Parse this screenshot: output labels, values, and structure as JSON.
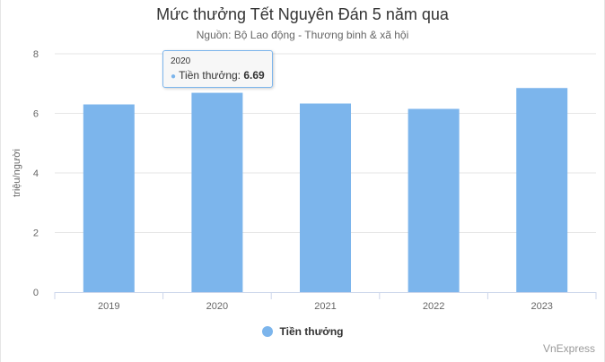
{
  "chart_data": {
    "type": "bar",
    "title": "Mức thưởng Tết Nguyên Đán 5 năm qua",
    "subtitle": "Nguồn: Bộ Lao động - Thương binh & xã hội",
    "ylabel": "triệu/người",
    "xlabel": "",
    "categories": [
      "2019",
      "2020",
      "2021",
      "2022",
      "2023"
    ],
    "series": [
      {
        "name": "Tiền thưởng",
        "values": [
          6.3,
          6.69,
          6.33,
          6.15,
          6.85
        ]
      }
    ],
    "ylim": [
      0,
      8
    ],
    "yticks": [
      "0",
      "2",
      "4",
      "6",
      "8"
    ],
    "grid": true,
    "legend_position": "bottom-center",
    "colors": {
      "bar": "#7cb5ec",
      "grid": "#e6e6e6"
    }
  },
  "tooltip": {
    "header": "2020",
    "series_label": "Tiền thưởng:",
    "value": "6.69"
  },
  "credits": "VnExpress"
}
